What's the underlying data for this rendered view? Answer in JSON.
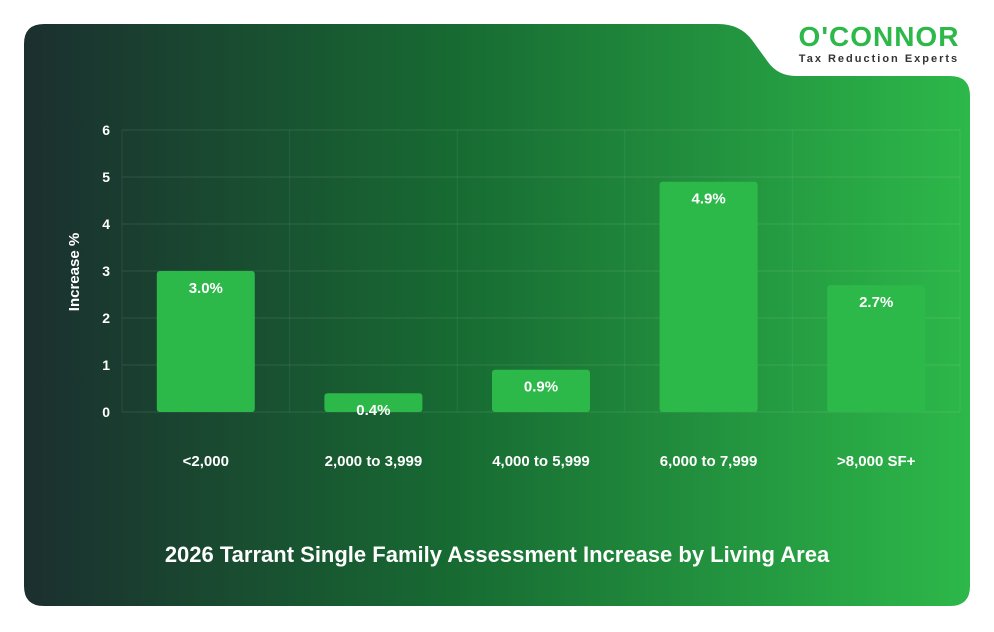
{
  "logo": {
    "name": "O'CONNOR",
    "tagline": "Tax Reduction Experts"
  },
  "colors": {
    "bg_dark": "#1b2f2f",
    "bg_mid": "#1a6b30",
    "bg_bright": "#2db84a",
    "bar": "#2db84a",
    "text": "#ffffff"
  },
  "chart_data": {
    "type": "bar",
    "title": "2026 Tarrant Single Family Assessment Increase by Living Area",
    "xlabel": "",
    "ylabel": "Increase %",
    "ylim": [
      0,
      6
    ],
    "yticks": [
      "0",
      "1",
      "2",
      "3",
      "4",
      "5",
      "6"
    ],
    "categories": [
      "<2,000",
      "2,000 to 3,999",
      "4,000 to 5,999",
      "6,000 to 7,999",
      ">8,000 SF+"
    ],
    "values": [
      3.0,
      0.4,
      0.9,
      4.9,
      2.7
    ],
    "data_labels": [
      "3.0%",
      "0.4%",
      "0.9%",
      "4.9%",
      "2.7%"
    ],
    "grid": true,
    "legend": "none"
  }
}
